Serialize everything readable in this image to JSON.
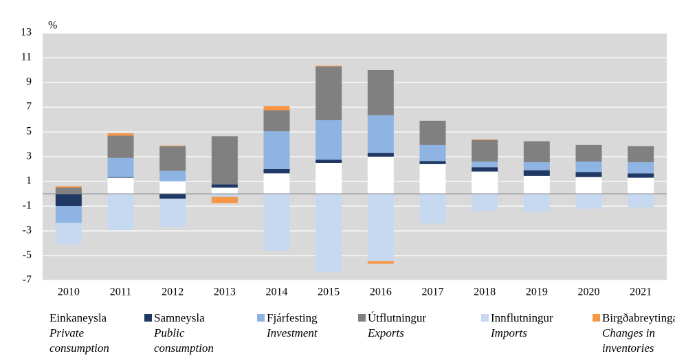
{
  "chart_data": {
    "type": "bar",
    "stacked": true,
    "ylabel": "%",
    "categories": [
      "2010",
      "2011",
      "2012",
      "2013",
      "2014",
      "2015",
      "2016",
      "2017",
      "2018",
      "2019",
      "2020",
      "2021"
    ],
    "series": [
      {
        "name": "Einkaneysla",
        "label_en": "Private consumption",
        "color": "#ffffff",
        "values": [
          0,
          1.3,
          1.0,
          0.5,
          1.65,
          2.5,
          3.0,
          2.4,
          1.8,
          1.45,
          1.35,
          1.3
        ]
      },
      {
        "name": "Samneysla",
        "label_en": "Public consumption",
        "color": "#1f3864",
        "values": [
          -1.0,
          0.05,
          -0.4,
          0.25,
          0.35,
          0.25,
          0.3,
          0.25,
          0.35,
          0.45,
          0.4,
          0.35
        ]
      },
      {
        "name": "Fjárfesting",
        "label_en": "Investment",
        "color": "#8eb4e3",
        "values": [
          -1.35,
          1.55,
          0.85,
          0,
          3.05,
          3.2,
          3.05,
          1.3,
          0.45,
          0.65,
          0.85,
          0.9
        ]
      },
      {
        "name": "Útflutningur",
        "label_en": "Exports",
        "color": "#808080",
        "values": [
          0.5,
          1.8,
          2.0,
          3.9,
          1.7,
          4.35,
          3.65,
          1.95,
          1.75,
          1.7,
          1.35,
          1.3
        ]
      },
      {
        "name": "Innflutningur",
        "label_en": "Imports",
        "color": "#c6d9f1",
        "values": [
          -1.75,
          -2.95,
          -2.3,
          -0.25,
          -4.6,
          -6.35,
          -5.45,
          -2.4,
          -1.4,
          -1.45,
          -1.2,
          -1.1
        ]
      },
      {
        "name": "Birgðabreytingar",
        "label_en": "Changes in inventories",
        "color": "#f79646",
        "values": [
          0.1,
          0.2,
          0.05,
          -0.5,
          0.35,
          0.05,
          -0.2,
          0,
          0.05,
          0,
          0,
          0
        ]
      }
    ],
    "ylim": [
      -7,
      13
    ],
    "yticks": [
      -7,
      -5,
      -3,
      -1,
      1,
      3,
      5,
      7,
      9,
      11,
      13
    ],
    "grid": true
  }
}
